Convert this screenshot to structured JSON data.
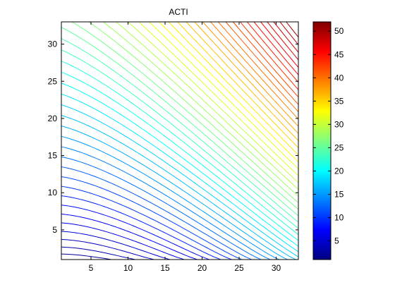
{
  "chart_data": {
    "type": "contour",
    "title": "ACTI",
    "xlabel": "",
    "ylabel": "",
    "xlim": [
      1,
      33
    ],
    "ylim": [
      1,
      33
    ],
    "x_ticks": [
      5,
      10,
      15,
      20,
      25,
      30
    ],
    "y_ticks": [
      5,
      10,
      15,
      20,
      25,
      30
    ],
    "colorbar": {
      "colormap": "jet",
      "range": [
        1,
        52
      ],
      "ticks": [
        5,
        10,
        15,
        20,
        25,
        30,
        35,
        40,
        45,
        50
      ]
    },
    "contour_levels": [
      2,
      3,
      4,
      5,
      6,
      7,
      8,
      9,
      10,
      11,
      12,
      13,
      14,
      15,
      16,
      17,
      18,
      19,
      20,
      21,
      22,
      23,
      24,
      25,
      26,
      27,
      28,
      29,
      30,
      31,
      32,
      33,
      34,
      35,
      36,
      37,
      38,
      39,
      40,
      41,
      42,
      43,
      44,
      45,
      46,
      47,
      48,
      49,
      50
    ],
    "grid": false
  }
}
